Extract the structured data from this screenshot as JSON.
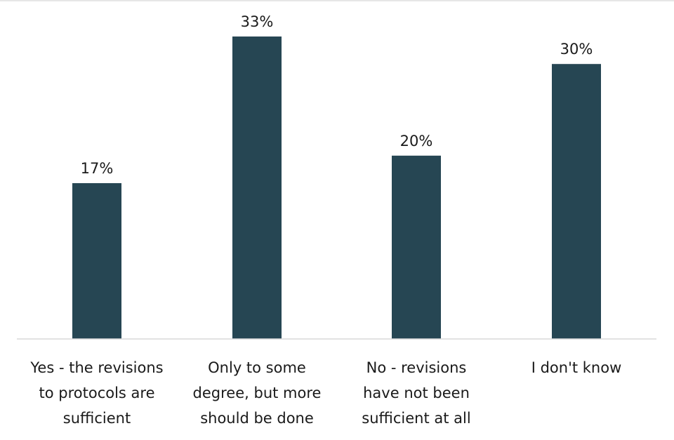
{
  "chart_data": {
    "type": "bar",
    "categories": [
      [
        "Yes - the revisions",
        "to protocols are",
        "sufficient"
      ],
      [
        "Only to some",
        "degree, but more",
        "should be done"
      ],
      [
        "No - revisions",
        "have not been",
        "sufficient at all"
      ],
      [
        "I don't know"
      ]
    ],
    "values": [
      17,
      33,
      20,
      30
    ],
    "data_labels": [
      "17%",
      "33%",
      "20%",
      "30%"
    ],
    "bar_color": "#264653",
    "ylim": [
      0,
      35
    ],
    "grid": false,
    "legend": "none"
  }
}
